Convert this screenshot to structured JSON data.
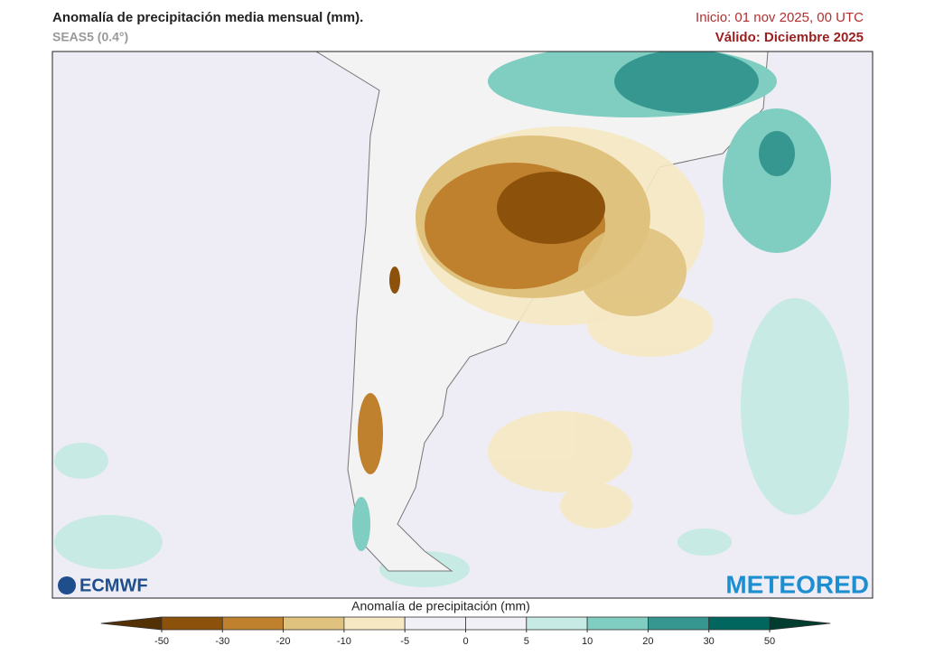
{
  "header": {
    "title": "Anomalía de precipitación media mensual (mm).",
    "subtitle": "SEAS5 (0.4°)",
    "init": "Inicio: 01 nov 2025, 00 UTC",
    "valid": "Válido: Diciembre 2025"
  },
  "logos": {
    "left": "ECMWF",
    "right": "METEORED"
  },
  "colorbar": {
    "label": "Anomalía de precipitación (mm)",
    "ticks": [
      -50,
      -30,
      -20,
      -10,
      -5,
      0,
      5,
      10,
      20,
      30,
      50
    ],
    "colors": [
      "#543005",
      "#8c510a",
      "#bf812d",
      "#dfc27d",
      "#f6e8c3",
      "#f1f0f6",
      "#f1f0f6",
      "#c7eae5",
      "#80cdc1",
      "#35978f",
      "#01665e",
      "#003c30"
    ]
  }
}
